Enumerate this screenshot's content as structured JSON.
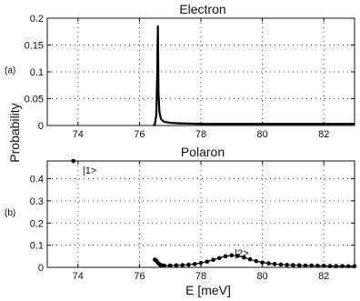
{
  "chart_data": [
    {
      "type": "line",
      "panel_tag": "(a)",
      "title": "Electron",
      "xlim": [
        73,
        83
      ],
      "ylim": [
        0,
        0.2
      ],
      "xticks": [
        74,
        76,
        78,
        80,
        82
      ],
      "yticks": [
        0,
        0.05,
        0.1,
        0.15,
        0.2
      ],
      "yticklabels": [
        "0",
        "0.05",
        "0.1",
        "0.15",
        "0.2"
      ],
      "grid": true,
      "color": "#000000",
      "series": [
        {
          "x": [
            76.45,
            76.5,
            76.55,
            76.58,
            76.6,
            76.62,
            76.65,
            76.7,
            76.8,
            77.0,
            77.3,
            78,
            79,
            80,
            81,
            82,
            83
          ],
          "y": [
            0,
            0.002,
            0.02,
            0.1,
            0.185,
            0.06,
            0.025,
            0.012,
            0.007,
            0.005,
            0.004,
            0.003,
            0.003,
            0.003,
            0.003,
            0.003,
            0.003
          ]
        }
      ]
    },
    {
      "type": "line",
      "panel_tag": "(b)",
      "title": "Polaron",
      "xlabel": "E [meV]",
      "xlim": [
        73,
        83
      ],
      "ylim": [
        0,
        0.48
      ],
      "xticks": [
        74,
        76,
        78,
        80,
        82
      ],
      "yticks": [
        0,
        0.1,
        0.2,
        0.3,
        0.4
      ],
      "yticklabels": [
        "0",
        "0.1",
        "0.2",
        "0.3",
        "0.4"
      ],
      "grid": true,
      "color": "#000000",
      "annotations": [
        {
          "text": "|1>",
          "x": 74.15,
          "y": 0.44
        },
        {
          "text": "|2>",
          "x": 79.1,
          "y": 0.065
        }
      ],
      "series": [
        {
          "x": [
            73.85,
            76.5,
            76.55,
            76.6,
            76.65,
            76.7,
            76.8,
            77.0,
            77.2,
            77.4,
            77.6,
            77.8,
            78.0,
            78.2,
            78.4,
            78.6,
            78.8,
            79.0,
            79.2,
            79.4,
            79.6,
            79.8,
            80.0,
            80.2,
            80.4,
            80.6,
            80.8,
            81.0,
            81.2,
            81.4,
            81.6,
            81.8,
            82.0,
            82.2,
            82.4,
            82.6,
            82.8,
            83.0
          ],
          "y": [
            0.48,
            0.035,
            0.03,
            0.02,
            0.014,
            0.01,
            0.008,
            0.008,
            0.009,
            0.01,
            0.012,
            0.015,
            0.02,
            0.026,
            0.034,
            0.042,
            0.05,
            0.054,
            0.052,
            0.045,
            0.036,
            0.028,
            0.022,
            0.018,
            0.015,
            0.013,
            0.011,
            0.01,
            0.009,
            0.008,
            0.008,
            0.007,
            0.007,
            0.006,
            0.006,
            0.006,
            0.005,
            0.005
          ]
        }
      ]
    }
  ],
  "ylabel": "Probability"
}
